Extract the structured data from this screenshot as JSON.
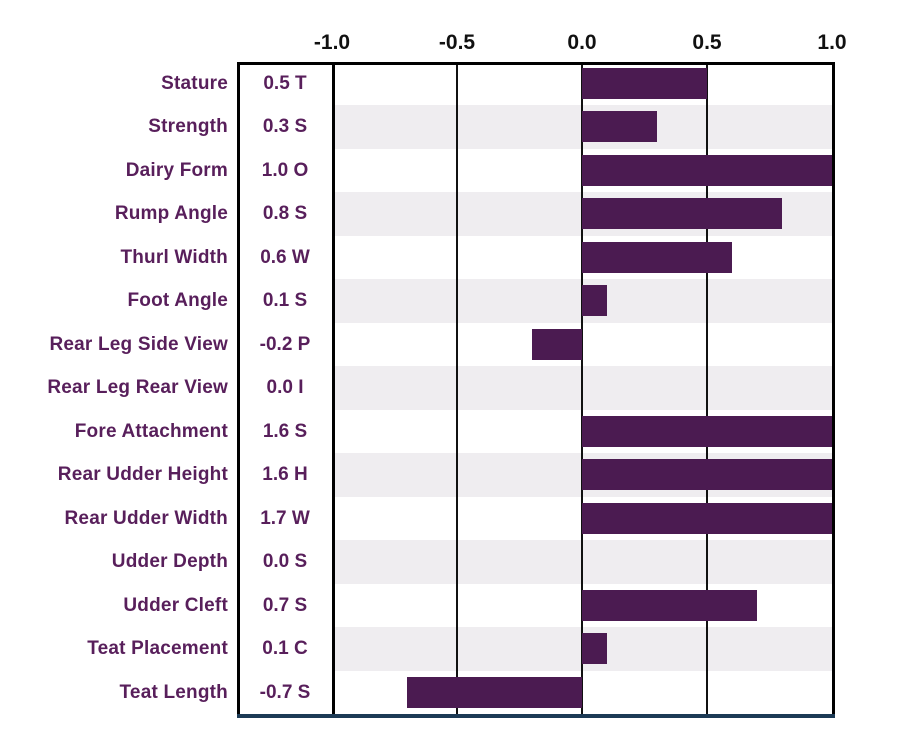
{
  "chart_data": {
    "type": "bar",
    "orientation": "horizontal",
    "title": "",
    "xlabel": "",
    "ylabel": "",
    "xlim": [
      -1.0,
      1.0
    ],
    "grid": true,
    "legend": false,
    "bars_clipped_at_xlim": true,
    "x_ticks": [
      {
        "label": "-1.0",
        "value": -1.0
      },
      {
        "label": "-0.5",
        "value": -0.5
      },
      {
        "label": "0.0",
        "value": 0.0
      },
      {
        "label": "0.5",
        "value": 0.5
      },
      {
        "label": "1.0",
        "value": 1.0
      }
    ],
    "rows": [
      {
        "label": "Stature",
        "value": 0.5,
        "value_label": "0.5 T"
      },
      {
        "label": "Strength",
        "value": 0.3,
        "value_label": "0.3 S"
      },
      {
        "label": "Dairy Form",
        "value": 1.0,
        "value_label": "1.0 O"
      },
      {
        "label": "Rump Angle",
        "value": 0.8,
        "value_label": "0.8 S"
      },
      {
        "label": "Thurl Width",
        "value": 0.6,
        "value_label": "0.6 W"
      },
      {
        "label": "Foot Angle",
        "value": 0.1,
        "value_label": "0.1 S"
      },
      {
        "label": "Rear Leg Side View",
        "value": -0.2,
        "value_label": "-0.2 P"
      },
      {
        "label": "Rear Leg Rear View",
        "value": 0.0,
        "value_label": "0.0 I"
      },
      {
        "label": "Fore Attachment",
        "value": 1.6,
        "value_label": "1.6 S"
      },
      {
        "label": "Rear Udder Height",
        "value": 1.6,
        "value_label": "1.6 H"
      },
      {
        "label": "Rear Udder Width",
        "value": 1.7,
        "value_label": "1.7 W"
      },
      {
        "label": "Udder Depth",
        "value": 0.0,
        "value_label": "0.0 S"
      },
      {
        "label": "Udder Cleft",
        "value": 0.7,
        "value_label": "0.7 S"
      },
      {
        "label": "Teat Placement",
        "value": 0.1,
        "value_label": "0.1 C"
      },
      {
        "label": "Teat Length",
        "value": -0.7,
        "value_label": "-0.7 S"
      }
    ],
    "colors": {
      "bar": "#4b1b51",
      "row_label_text": "#581f5b",
      "value_text": "#581f5b",
      "axis_text": "#111111",
      "grid_line": "#111111",
      "frame_line": "#000000",
      "bottom_line": "#1c3a55",
      "stripe": "#efedf0",
      "background": "#ffffff"
    }
  }
}
